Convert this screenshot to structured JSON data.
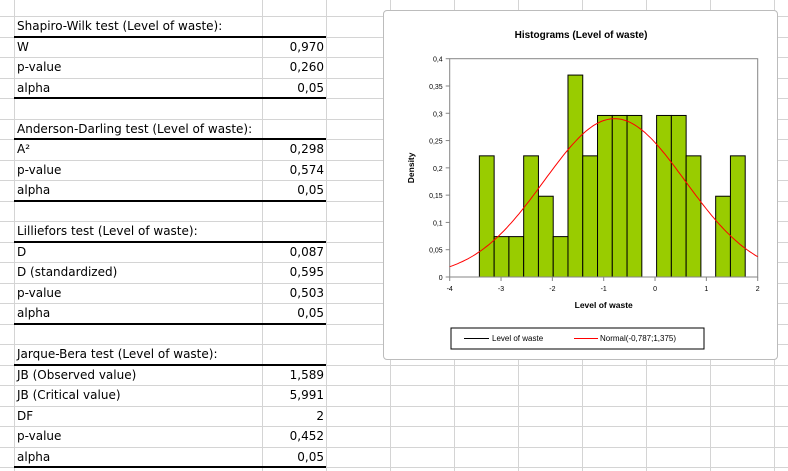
{
  "tests": [
    {
      "title": "Shapiro-Wilk test (Level of waste):",
      "rows": [
        {
          "label": "W",
          "value": "0,970"
        },
        {
          "label": "p-value",
          "value": "0,260"
        },
        {
          "label": "alpha",
          "value": "0,05"
        }
      ]
    },
    {
      "title": "Anderson-Darling test (Level of waste):",
      "rows": [
        {
          "label": "A²",
          "value": "0,298"
        },
        {
          "label": "p-value",
          "value": "0,574"
        },
        {
          "label": "alpha",
          "value": "0,05"
        }
      ]
    },
    {
      "title": "Lilliefors test (Level of waste):",
      "rows": [
        {
          "label": "D",
          "value": "0,087"
        },
        {
          "label": "D (standardized)",
          "value": "0,595"
        },
        {
          "label": "p-value",
          "value": "0,503"
        },
        {
          "label": "alpha",
          "value": "0,05"
        }
      ]
    },
    {
      "title": "Jarque-Bera test (Level of waste):",
      "rows": [
        {
          "label": "JB (Observed value)",
          "value": "1,589"
        },
        {
          "label": "JB (Critical value)",
          "value": "5,991"
        },
        {
          "label": "DF",
          "value": "2"
        },
        {
          "label": "p-value",
          "value": "0,452"
        },
        {
          "label": "alpha",
          "value": "0,05"
        }
      ]
    }
  ],
  "chart_data": {
    "type": "bar",
    "title": "Histograms (Level of waste)",
    "xlabel": "Level of waste",
    "ylabel": "Density",
    "xlim": [
      -4,
      2
    ],
    "ylim": [
      0,
      0.4
    ],
    "xticks": [
      "-4",
      "-3",
      "-2",
      "-1",
      "0",
      "1",
      "2"
    ],
    "yticks": [
      "0",
      "0,05",
      "0,1",
      "0,15",
      "0,2",
      "0,25",
      "0,3",
      "0,35",
      "0,4"
    ],
    "bin_start": -3.422,
    "bin_width": 0.2877,
    "densities": [
      0.222,
      0.074,
      0.074,
      0.222,
      0.148,
      0.074,
      0.37,
      0.222,
      0.296,
      0.296,
      0.296,
      0,
      0.296,
      0.296,
      0.222,
      0,
      0.148,
      0.222
    ],
    "bar_color": "#99cc00",
    "normal": {
      "mean": -0.787,
      "sd": 1.375,
      "color": "#ff0000"
    },
    "legend": {
      "position": "bottom",
      "entries": [
        "Level of waste",
        "Normal(-0,787;1,375)"
      ]
    }
  }
}
